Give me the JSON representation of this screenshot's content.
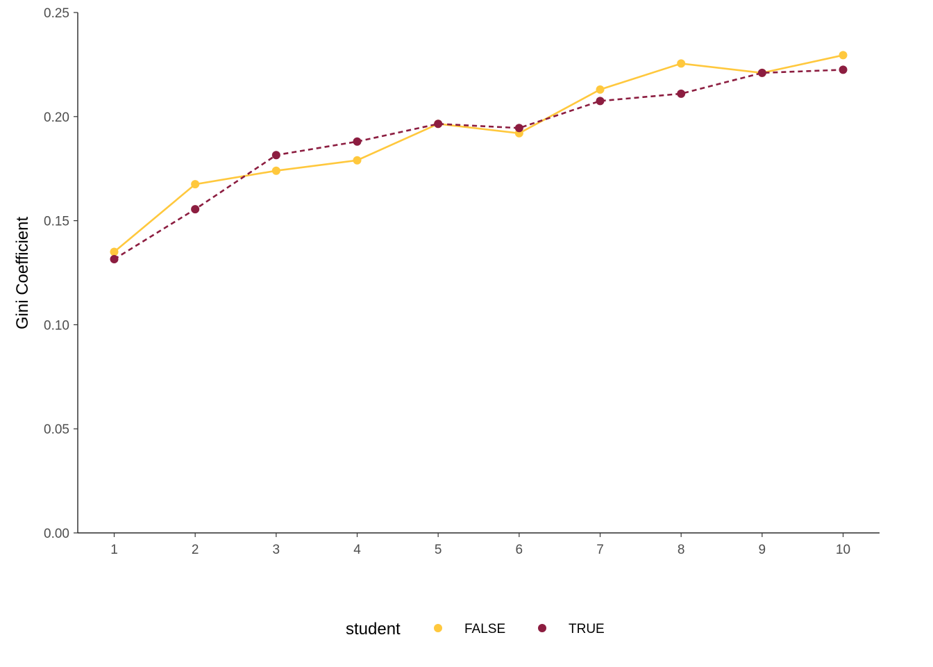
{
  "chart_data": {
    "type": "line",
    "title": "",
    "xlabel": "",
    "ylabel": "Gini Coefficient",
    "x": [
      1,
      2,
      3,
      4,
      5,
      6,
      7,
      8,
      9,
      10
    ],
    "xlim": [
      0.55,
      10.45
    ],
    "ylim": [
      0,
      0.25
    ],
    "yticks": [
      0.0,
      0.05,
      0.1,
      0.15,
      0.2,
      0.25
    ],
    "ytick_labels": [
      "0.00",
      "0.05",
      "0.10",
      "0.15",
      "0.20",
      "0.25"
    ],
    "xtick_labels": [
      "1",
      "2",
      "3",
      "4",
      "5",
      "6",
      "7",
      "8",
      "9",
      "10"
    ],
    "grid": false,
    "legend": {
      "title": "student",
      "placement": "bottom"
    },
    "series": [
      {
        "name": "FALSE",
        "color": "#FFC83D",
        "line_style": "solid",
        "values": [
          0.135,
          0.1675,
          0.174,
          0.179,
          0.1965,
          0.192,
          0.213,
          0.2255,
          0.221,
          0.2295
        ]
      },
      {
        "name": "TRUE",
        "color": "#8C1D40",
        "line_style": "dashed",
        "values": [
          0.1315,
          0.1555,
          0.1815,
          0.188,
          0.1965,
          0.1945,
          0.2075,
          0.211,
          0.221,
          0.2225
        ]
      }
    ]
  }
}
